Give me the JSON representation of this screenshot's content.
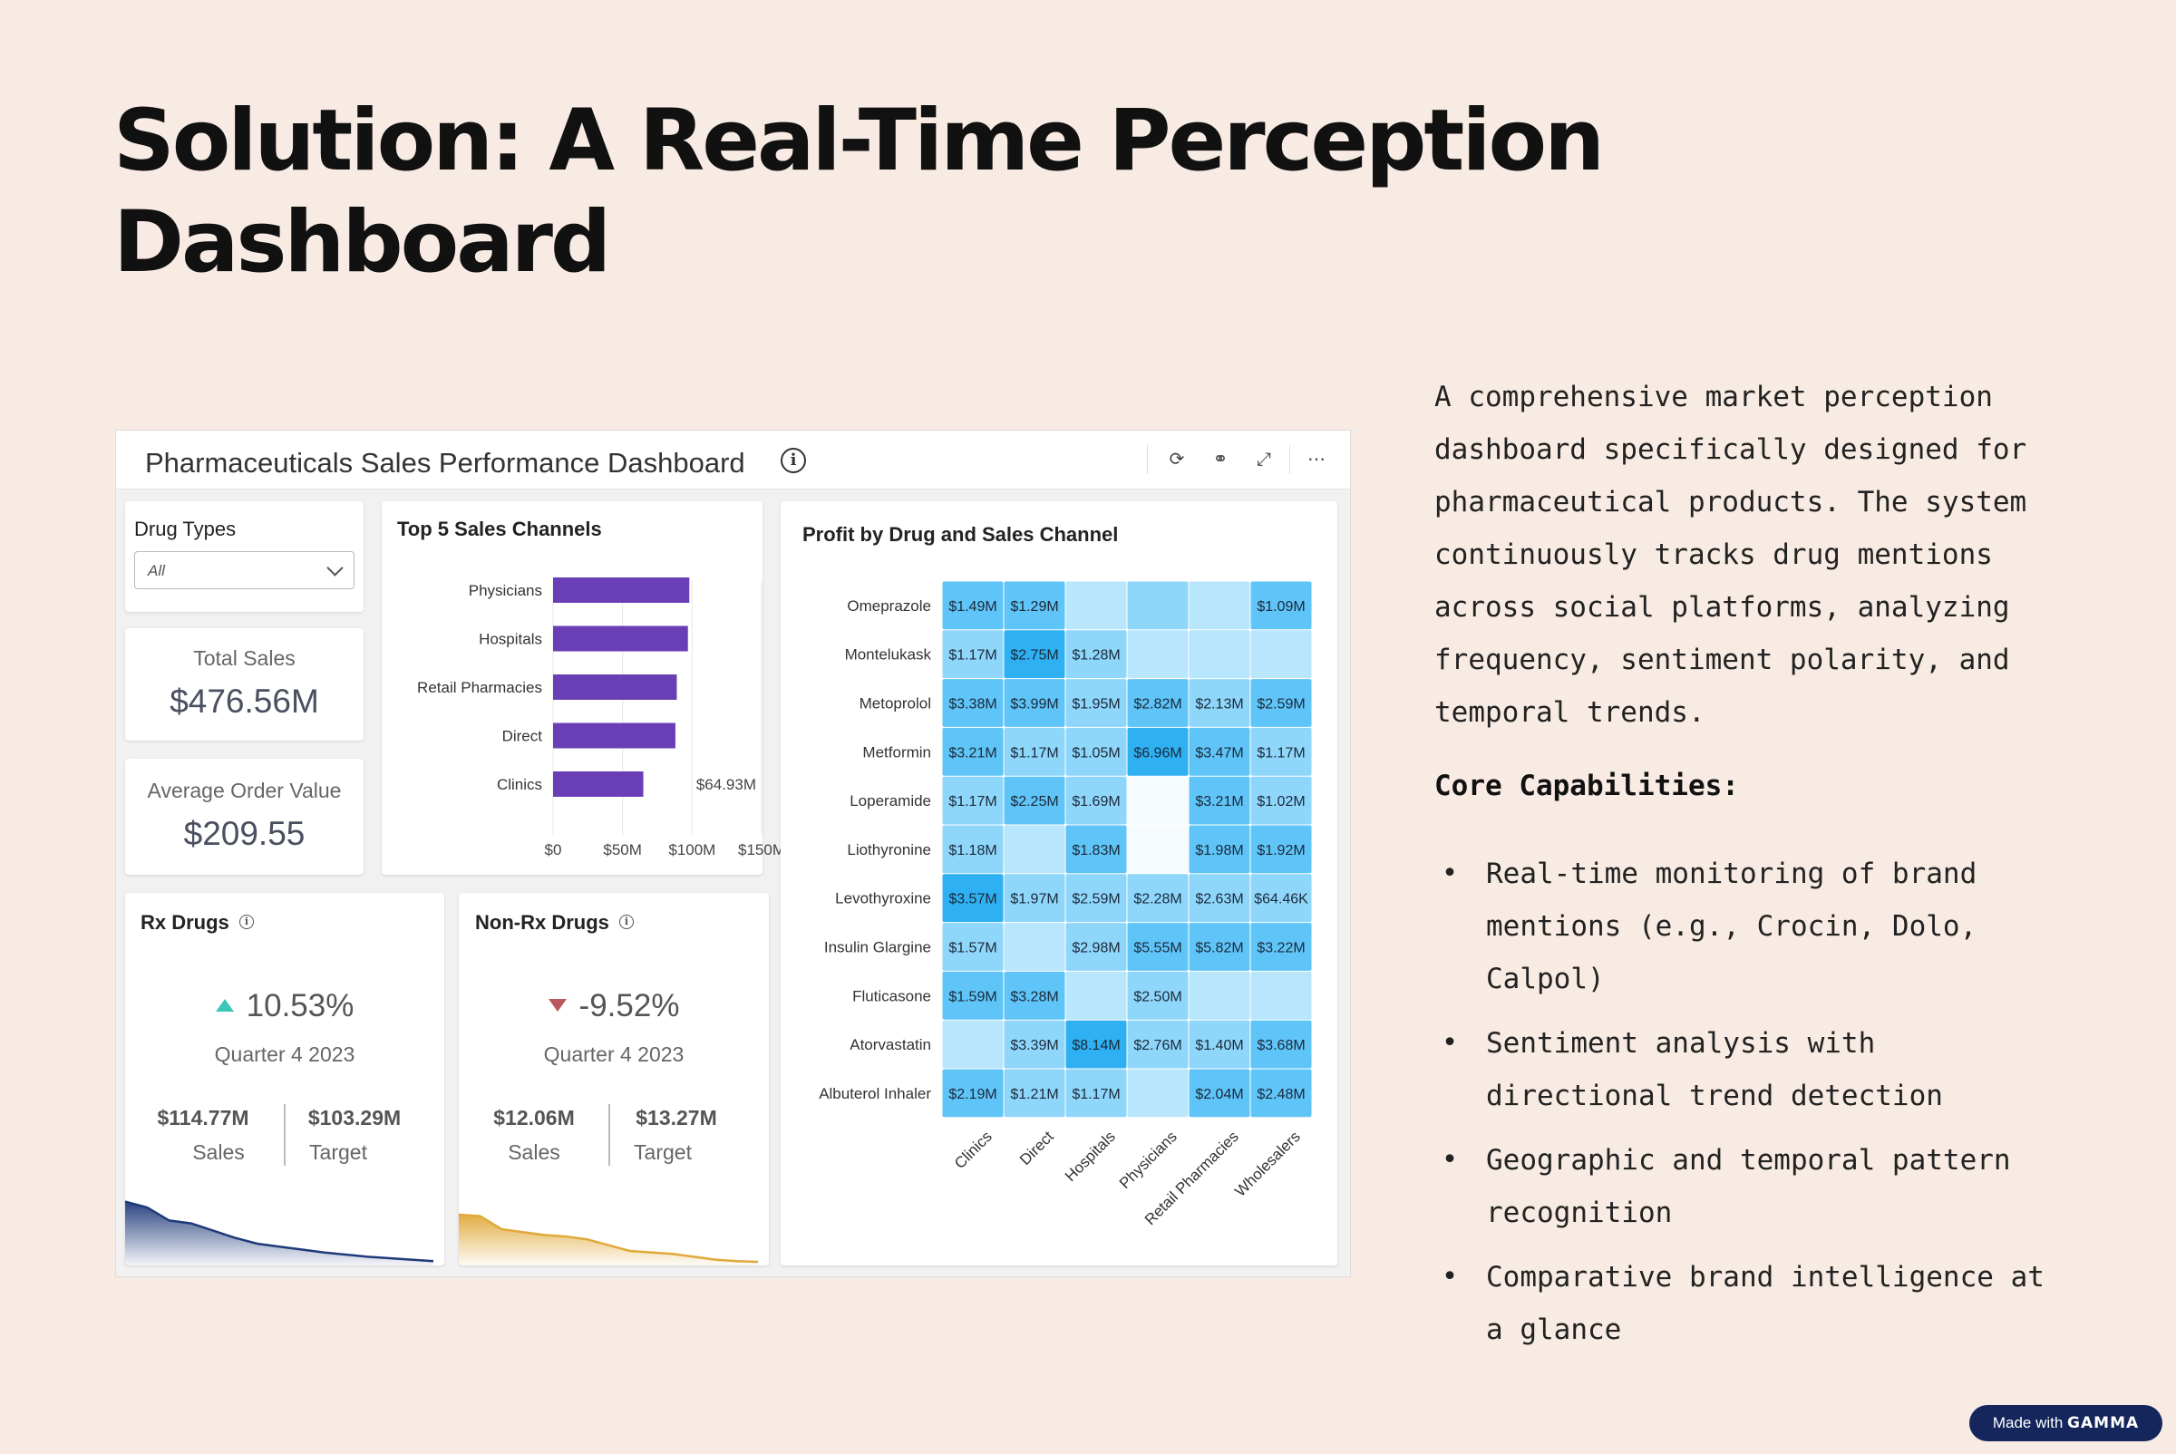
{
  "slide": {
    "title": "Solution: A Real-Time Perception Dashboard",
    "description": "A comprehensive market perception dashboard specifically designed for pharmaceutical products. The system continuously tracks drug mentions across social platforms, analyzing frequency, sentiment polarity, and temporal trends.",
    "core_heading": "Core Capabilities:",
    "capabilities": [
      "Real-time monitoring of brand mentions (e.g., Crocin, Dolo, Calpol)",
      "Sentiment analysis with directional trend detection",
      "Geographic and temporal pattern recognition",
      "Comparative brand intelligence at a glance"
    ],
    "badge": {
      "prefix": "Made with",
      "brand": "GAMMA"
    }
  },
  "dashboard": {
    "title": "Pharmaceuticals Sales Performance Dashboard",
    "toolbar_icons": [
      "refresh-icon",
      "link-icon",
      "expand-icon",
      "more-icon"
    ],
    "drug_types": {
      "label": "Drug Types",
      "selected": "All"
    },
    "total_sales": {
      "label": "Total Sales",
      "value": "$476.56M"
    },
    "avg_order": {
      "label": "Average Order Value",
      "value": "$209.55"
    },
    "rx": {
      "title": "Rx Drugs",
      "change": "10.53%",
      "direction": "up",
      "period": "Quarter 4 2023",
      "sales_value": "$114.77M",
      "sales_label": "Sales",
      "target_value": "$103.29M",
      "target_label": "Target",
      "color": "#1f3a7a"
    },
    "nonrx": {
      "title": "Non-Rx Drugs",
      "change": "-9.52%",
      "direction": "down",
      "period": "Quarter 4 2023",
      "sales_value": "$12.06M",
      "sales_label": "Sales",
      "target_value": "$13.27M",
      "target_label": "Target",
      "color": "#e0a93a"
    }
  },
  "chart_data": [
    {
      "type": "bar",
      "orientation": "horizontal",
      "title": "Top 5 Sales Channels",
      "categories": [
        "Physicians",
        "Hospitals",
        "Retail Pharmacies",
        "Direct",
        "Clinics"
      ],
      "values": [
        98,
        97,
        89,
        88,
        64.93
      ],
      "data_labels": [
        "",
        "",
        "",
        "",
        "$64.93M"
      ],
      "x_ticks": [
        "$0",
        "$50M",
        "$100M",
        "$150M"
      ],
      "xlim": [
        0,
        150
      ],
      "bar_color": "#6a3fb5"
    },
    {
      "type": "heatmap",
      "title": "Profit by Drug and Sales Channel",
      "rows": [
        "Omeprazole",
        "Montelukask",
        "Metoprolol",
        "Metformin",
        "Loperamide",
        "Liothyronine",
        "Levothyroxine",
        "Insulin Glargine",
        "Fluticasone",
        "Atorvastatin",
        "Albuterol Inhaler"
      ],
      "columns": [
        "Clinics",
        "Direct",
        "Hospitals",
        "Physicians",
        "Retail Pharmacies",
        "Wholesalers"
      ],
      "labels": [
        [
          "$1.49M",
          "$1.29M",
          "",
          "",
          "",
          "$1.09M"
        ],
        [
          "$1.17M",
          "$2.75M",
          "$1.28M",
          "",
          "",
          ""
        ],
        [
          "$3.38M",
          "$3.99M",
          "$1.95M",
          "$2.82M",
          "$2.13M",
          "$2.59M"
        ],
        [
          "$3.21M",
          "$1.17M",
          "$1.05M",
          "$6.96M",
          "$3.47M",
          "$1.17M"
        ],
        [
          "$1.17M",
          "$2.25M",
          "$1.69M",
          "",
          "$3.21M",
          "$1.02M"
        ],
        [
          "$1.18M",
          "",
          "$1.83M",
          "",
          "$1.98M",
          "$1.92M"
        ],
        [
          "$3.57M",
          "$1.97M",
          "$2.59M",
          "$2.28M",
          "$2.63M",
          "$64.46K"
        ],
        [
          "$1.57M",
          "",
          "$2.98M",
          "$5.55M",
          "$5.82M",
          "$3.22M"
        ],
        [
          "$1.59M",
          "$3.28M",
          "",
          "$2.50M",
          "",
          ""
        ],
        [
          "",
          "$3.39M",
          "$8.14M",
          "$2.76M",
          "$1.40M",
          "$3.68M"
        ],
        [
          "$2.19M",
          "$1.21M",
          "$1.17M",
          "",
          "$2.04M",
          "$2.48M"
        ]
      ],
      "intensity": [
        [
          3,
          3,
          1,
          2,
          1,
          3
        ],
        [
          2,
          4,
          2,
          1,
          1,
          1
        ],
        [
          3,
          3,
          2,
          3,
          2,
          3
        ],
        [
          3,
          2,
          2,
          4,
          3,
          2
        ],
        [
          2,
          3,
          2,
          0,
          3,
          2
        ],
        [
          2,
          1,
          3,
          0,
          3,
          3
        ],
        [
          4,
          2,
          2,
          2,
          2,
          2
        ],
        [
          2,
          1,
          2,
          3,
          3,
          3
        ],
        [
          3,
          3,
          1,
          2,
          1,
          1
        ],
        [
          1,
          2,
          4,
          2,
          2,
          3
        ],
        [
          3,
          2,
          2,
          1,
          3,
          3
        ]
      ],
      "palette": [
        "#f5fbff",
        "#b8e6fc",
        "#8fd6fb",
        "#5fc4f7",
        "#2eb0f2"
      ]
    },
    {
      "type": "area",
      "title": "Rx Drugs",
      "values": [
        88,
        80,
        62,
        58,
        48,
        38,
        30,
        26,
        22,
        18,
        15,
        12,
        10,
        8,
        6
      ],
      "color": "#1f3a7a"
    },
    {
      "type": "area",
      "title": "Non-Rx Drugs",
      "values": [
        70,
        68,
        50,
        46,
        42,
        40,
        36,
        28,
        20,
        18,
        16,
        12,
        8,
        6,
        5
      ],
      "color": "#e0a93a"
    }
  ]
}
